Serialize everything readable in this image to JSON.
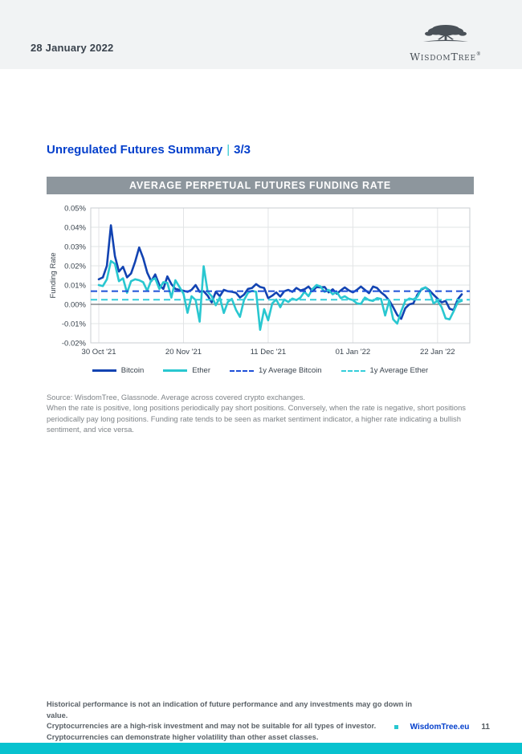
{
  "header": {
    "date": "28 January 2022",
    "brand": "WisdomTree",
    "registered": "®"
  },
  "title": {
    "main": "Unregulated Futures Summary",
    "separator": "|",
    "page_fraction": "3/3"
  },
  "chart_data": {
    "type": "line",
    "title": "AVERAGE PERPETUAL FUTURES FUNDING RATE",
    "ylabel": "Funding Rate",
    "ylim": [
      -0.02,
      0.05
    ],
    "ytick_step": 0.01,
    "ytick_labels": [
      "0.05%",
      "0.04%",
      "0.03%",
      "0.02%",
      "0.01%",
      "0.00%",
      "-0.01%",
      "-0.02%"
    ],
    "x_tick_labels": [
      "30 Oct '21",
      "20 Nov '21",
      "11 Dec '21",
      "01 Jan '22",
      "22 Jan '22"
    ],
    "x_tick_days": [
      0,
      21,
      42,
      63,
      84
    ],
    "x_domain_days": [
      -2,
      92
    ],
    "grid": true,
    "legend_position": "bottom",
    "unit": "percent_per_funding_interval",
    "series": [
      {
        "name": "Bitcoin",
        "style": "solid",
        "color": "#1243b2",
        "values": [
          0.013,
          0.014,
          0.02,
          0.041,
          0.025,
          0.017,
          0.0195,
          0.014,
          0.016,
          0.022,
          0.0295,
          0.024,
          0.0165,
          0.012,
          0.0155,
          0.01,
          0.008,
          0.0145,
          0.0105,
          0.008,
          0.0075,
          0.007,
          0.0065,
          0.0075,
          0.01,
          0.0065,
          0.0068,
          0.0045,
          0.001,
          0.0065,
          0.0042,
          0.0075,
          0.0068,
          0.0065,
          0.006,
          0.0035,
          0.005,
          0.008,
          0.0085,
          0.0105,
          0.009,
          0.0085,
          0.0032,
          0.0045,
          0.0062,
          0.004,
          0.0068,
          0.0075,
          0.0065,
          0.0085,
          0.0072,
          0.0078,
          0.0092,
          0.0068,
          0.009,
          0.0088,
          0.009,
          0.0062,
          0.0078,
          0.0055,
          0.0072,
          0.0088,
          0.0072,
          0.0062,
          0.0075,
          0.0092,
          0.0075,
          0.0058,
          0.0092,
          0.0085,
          0.0062,
          0.0045,
          0.002,
          -0.0015,
          -0.0055,
          -0.0075,
          -0.002,
          0.0,
          0.0005,
          0.005,
          0.0076,
          0.0088,
          0.0072,
          0.005,
          0.003,
          0.001,
          0.0018,
          -0.0023,
          -0.003,
          0.0026,
          0.0052
        ]
      },
      {
        "name": "Ether",
        "style": "solid",
        "color": "#29c7d0",
        "values": [
          0.01,
          0.0095,
          0.013,
          0.0225,
          0.021,
          0.012,
          0.0135,
          0.006,
          0.012,
          0.013,
          0.0125,
          0.0115,
          0.007,
          0.0125,
          0.0135,
          0.008,
          0.0115,
          0.0112,
          0.0035,
          0.0125,
          0.009,
          0.0055,
          -0.0044,
          0.0042,
          0.0022,
          -0.009,
          0.0198,
          0.0065,
          0.0042,
          -0.0005,
          0.0035,
          -0.0045,
          0.0012,
          0.0028,
          -0.0028,
          -0.0065,
          0.0022,
          0.006,
          0.007,
          0.0065,
          -0.0132,
          -0.0025,
          -0.0083,
          0.0005,
          0.0025,
          -0.0015,
          0.0025,
          0.0012,
          0.003,
          0.0022,
          0.0035,
          0.0065,
          0.0042,
          0.008,
          0.01,
          0.0092,
          0.0065,
          0.0075,
          0.0052,
          0.0065,
          0.0032,
          0.0042,
          0.0028,
          0.0022,
          0.0005,
          0.0002,
          0.0035,
          0.0022,
          0.0018,
          0.0032,
          0.0028,
          -0.0058,
          0.0018,
          -0.0078,
          -0.01,
          -0.0036,
          0.0018,
          0.003,
          0.0025,
          0.0039,
          0.008,
          0.0088,
          0.0067,
          0.0005,
          0.0018,
          -0.0015,
          -0.0073,
          -0.0078,
          -0.0036,
          0.001,
          0.0018
        ]
      },
      {
        "name": "1y Average Bitcoin",
        "style": "dashed",
        "color": "#1e50d8",
        "constant": 0.0068
      },
      {
        "name": "1y Average Ether",
        "style": "dashed",
        "color": "#35ceda",
        "constant": 0.0024
      }
    ]
  },
  "source_note": {
    "line1": "Source: WisdomTree, Glassnode. Average across covered crypto exchanges.",
    "body": "When the rate is positive, long positions periodically pay short positions. Conversely, when the rate is negative, short positions periodically pay long positions. Funding rate tends to be seen as market sentiment indicator, a higher rate indicating a bullish sentiment, and vice versa."
  },
  "footer": {
    "lines": [
      "Historical performance is not an indication of future performance and any investments may go down in value.",
      "Cryptocurrencies are a high-risk investment and may not be suitable for all types of investor.",
      "Cryptocurrencies can demonstrate higher volatility than other asset classes."
    ],
    "site": "WisdomTree.eu",
    "page_number": "11"
  },
  "colors": {
    "accent_blue": "#0540cc",
    "bitcoin": "#1243b2",
    "ether": "#29c7d0",
    "avg_bitcoin": "#1e50d8",
    "avg_ether": "#35ceda",
    "banner_gray": "#8d969d",
    "header_bg": "#f1f3f4",
    "bottom_bar": "#07c2cf",
    "grid_line": "#e2e4e6",
    "zero_line": "#6a6f74"
  }
}
